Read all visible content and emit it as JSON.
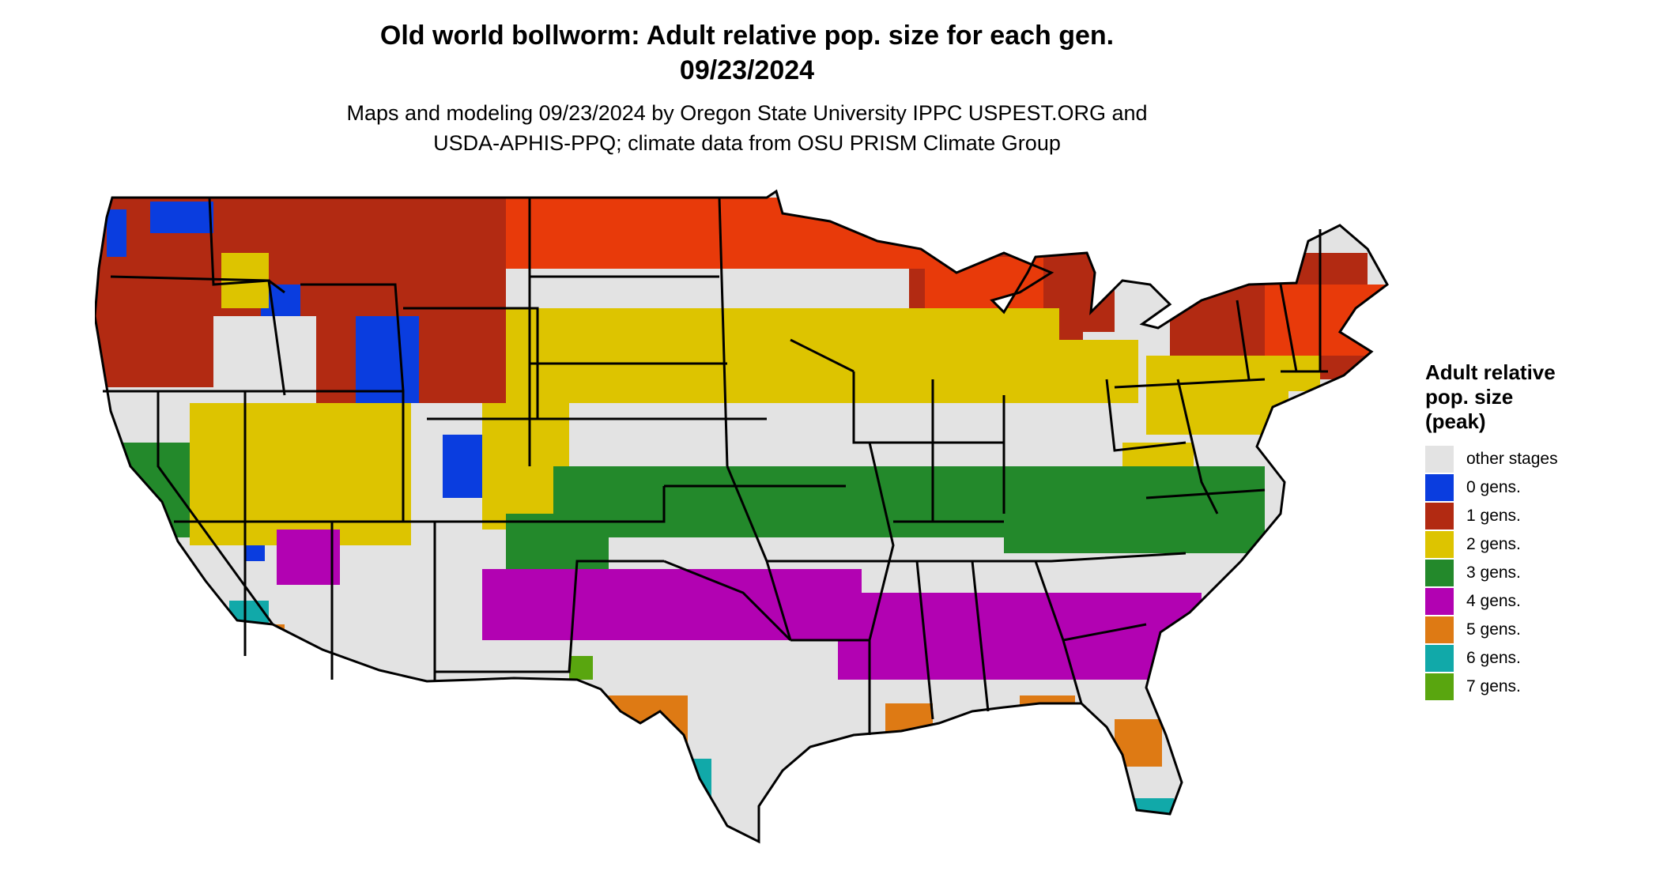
{
  "header": {
    "title_line1": "Old world bollworm: Adult relative pop. size for each gen.",
    "title_line2": "09/23/2024",
    "subtitle_line1": "Maps and modeling 09/23/2024 by Oregon State University IPPC USPEST.ORG and",
    "subtitle_line2": "USDA-APHIS-PPQ; climate data from OSU PRISM Climate Group"
  },
  "legend": {
    "title_lines": [
      "Adult relative",
      "pop. size",
      "(peak)"
    ],
    "items": [
      {
        "label": "other stages",
        "color": "#e3e3e3"
      },
      {
        "label": "0 gens.",
        "color": "#0a3ddf"
      },
      {
        "label": "1 gens.",
        "color": "#b22a12"
      },
      {
        "label": "2 gens.",
        "color": "#ddc400"
      },
      {
        "label": "3 gens.",
        "color": "#23892b"
      },
      {
        "label": "4 gens.",
        "color": "#b202b2"
      },
      {
        "label": "5 gens.",
        "color": "#de7a14"
      },
      {
        "label": "6 gens.",
        "color": "#11a9a9"
      },
      {
        "label": "7 gens.",
        "color": "#59a60f"
      }
    ]
  },
  "map": {
    "region": "Contiguous United States",
    "background_color": "#e3e3e3",
    "border_color": "#000000"
  }
}
